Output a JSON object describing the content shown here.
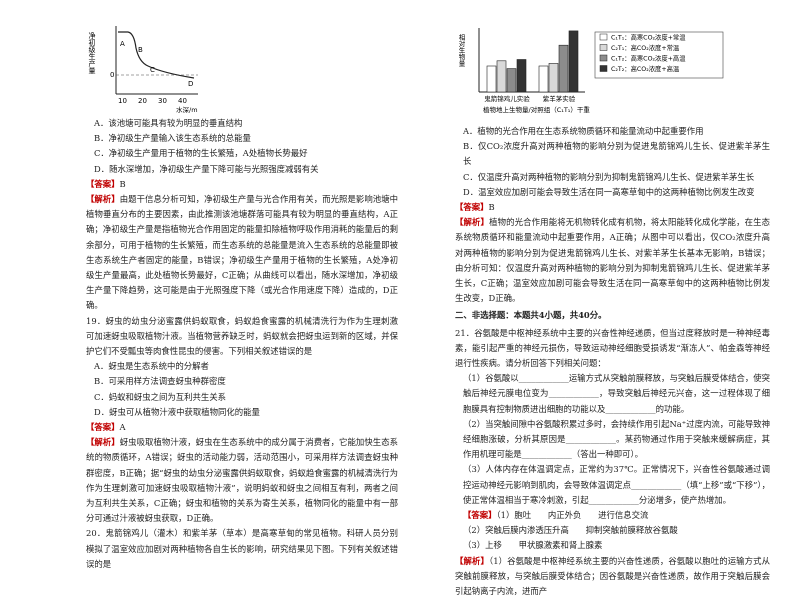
{
  "left": {
    "figure": {
      "y_label": "净初级生产量",
      "x_label": "水深/m",
      "xticks": [
        "10",
        "20",
        "30",
        "40"
      ],
      "zero": "0",
      "curve_labels": [
        "A",
        "B",
        "C",
        "D"
      ]
    },
    "questions": [
      {
        "options": [
          "A．该池塘可能具有较为明显的垂直结构",
          "B．净初级生产量输入该生态系统的总能量",
          "C．净初级生产量用于植物的生长繁殖，A处植物长势最好",
          "D．随水深增加，净初级生产量下降可能与光照强度减弱有关"
        ],
        "answer_tag": "【答案】",
        "answer": "B",
        "analysis_tag": "【解析】",
        "analysis": "由题干信息分析可知，净初级生产量与光合作用有关，而光照是影响池塘中植物垂直分布的主要因素，由此推测该池塘群落可能具有较为明显的垂直结构，A正确；净初级生产量是指植物光合作用固定的能量扣除植物呼吸作用消耗的能量后的剩余部分，可用于植物的生长繁殖，而生态系统的总能量是流入生态系统的总能量即被生态系统生产者固定的能量，B错误；净初级生产量用于植物的生长繁殖，A处净初级生产量最高，此处植物长势最好，C正确；从曲线可以看出，随水深增加，净初级生产量下降趋势，这可能是由于光照强度下降（或光合作用速度下降）造成的，D正确。"
      },
      {
        "stem": "19．蚜虫的幼虫分泌蜜露供蚂蚁取食，蚂蚁趋食蜜露的机械清洗行为作为生理刺激可加速蚜虫吸取植物汁液。当植物营养缺乏时，蚂蚁就会把蚜虫运到新的区域，并保护它们不受瓢虫等肉食性昆虫的侵害。下列相关叙述错误的是",
        "options": [
          "A．蚜虫是生态系统中的分解者",
          "B．可采用样方法调查蚜虫种群密度",
          "C．蚂蚁和蚜虫之间为互利共生关系",
          "D．蚜虫可从植物汁液中获取植物同化的能量"
        ],
        "answer_tag": "【答案】",
        "answer": "A",
        "analysis_tag": "【解析】",
        "analysis": "蚜虫吸取植物汁液，蚜虫在生态系统中的成分属于消费者，它能加快生态系统的物质循环，A错误；蚜虫的活动能力弱，活动范围小，可采用样方法调查蚜虫种群密度，B正确；据“蚜虫的幼虫分泌蜜露供蚂蚁取食，蚂蚁趋食蜜露的机械清洗行为作为生理刺激可加速蚜虫吸取植物汁液”，说明蚂蚁和蚜虫之间相互有利，两者之间为互利共生关系，C正确；蚜虫和植物的关系为寄生关系，植物同化的能量中有一部分可通过汁液被蚜虫获取，D正确。"
      },
      {
        "stem": "20．鬼箭锦鸡儿（灌木）和紫羊茅（草本）是高寒草甸的常见植物。科研人员分别模拟了温室效应加剧对两种植物各自生长的影响，研究结果见下图。下列有关叙述错误的是"
      }
    ]
  },
  "right": {
    "figure": {
      "y_label": "相对生物量",
      "categories": [
        "鬼箭锦鸡儿实验",
        "紫羊茅实验"
      ],
      "x_label": "植物地上生物量/对照组（C₁T₁）干重",
      "series": [
        {
          "name": "C₁T₁：高寒CO₂浓度+常温",
          "color": "#ffffff",
          "values": [
            1.0,
            1.0
          ]
        },
        {
          "name": "C₂T₁：高CO₂浓度+常温",
          "color": "#d9d9d9",
          "values": [
            1.2,
            1.1
          ]
        },
        {
          "name": "C₁T₂：高寒CO₂浓度+高温",
          "color": "#8c8c8c",
          "values": [
            0.9,
            1.8
          ]
        },
        {
          "name": "C₂T₂：高CO₂浓度+高温",
          "color": "#333333",
          "values": [
            1.25,
            2.35
          ]
        }
      ]
    },
    "questions": [
      {
        "options": [
          "A．植物的光合作用在生态系统物质循环和能量流动中起重要作用",
          "B．仅CO₂浓度升高对两种植物的影响分别为促进鬼箭锦鸡儿生长、促进紫羊茅生长",
          "C．仅温度升高对两种植物的影响分别为抑制鬼箭锦鸡儿生长、促进紫羊茅生长",
          "D．温室效应加剧可能会导致生活在同一高寒草甸中的这两种植物比例发生改变"
        ],
        "answer_tag": "【答案】",
        "answer": "B",
        "analysis_tag": "【解析】",
        "analysis": "植物的光合作用能将无机物转化成有机物，将太阳能转化成化学能，在生态系统物质循环和能量流动中起重要作用，A正确；从图中可以看出，仅CO₂浓度升高对两种植物的影响分别为促进鬼箭锦鸡儿生长、对紫羊茅生长基本无影响，B错误；由分析可知：仅温度升高对两种植物的影响分别为抑制鬼箭锦鸡儿生长、促进紫羊茅生长，C正确；温室效应加剧可能会导致生活在同一高寒草甸中的这两种植物比例发生改变，D正确。"
      }
    ],
    "section": "二、非选择题：本题共4小题，共40分。",
    "q21": {
      "stem": "21．谷氨酸是中枢神经系统中主要的兴奋性神经递质，但当过度释放时是一种神经毒素，能引起严重的神经元损伤，导致运动神经细胞受损诱发“渐冻人”、帕金森等神经退行性疾病。请分析回答下列相关问题：",
      "parts": [
        "（1）谷氨酸以____________运输方式从突触前膜释放，与突触后膜受体结合，使突触后神经元膜电位变为____________，导致突触后神经元兴奋，这一过程体现了细胞膜具有控制物质进出细胞的功能以及____________的功能。",
        "（2）当突触间隙中谷氨酸积累过多时，会持续作用引起Na⁺过度内流，可能导致神经细胞涨破，分析其原因是____________。某药物通过作用于突触来缓解病症，其作用机理可能是____________（答出一种即可）。",
        "（3）人体内存在体温调定点，正常约为37℃。正常情况下，兴奋性谷氨酸通过调控运动神经元影响到肌肉，会导致体温调定点____________（填“上移”或“下移”），使正常体温相当于寒冷刺激，引起____________分泌增多，使产热增加。"
      ],
      "answer_tag": "【答案】",
      "answers": [
        "（1）胞吐　　内正外负　　进行信息交流",
        "（2）突触后膜内渗透压升高　　抑制突触前膜释放谷氨酸",
        "（3）上移　　甲状腺激素和肾上腺素"
      ],
      "analysis_tag": "【解析】",
      "analysis": "（1）谷氨酸是中枢神经系统主要的兴奋性递质，谷氨酸以胞吐的运输方式从突触前膜释放，与突触后膜受体结合；因谷氨酸是兴奋性递质，故作用于突触后膜会引起钠离子内流，进而产"
    }
  }
}
